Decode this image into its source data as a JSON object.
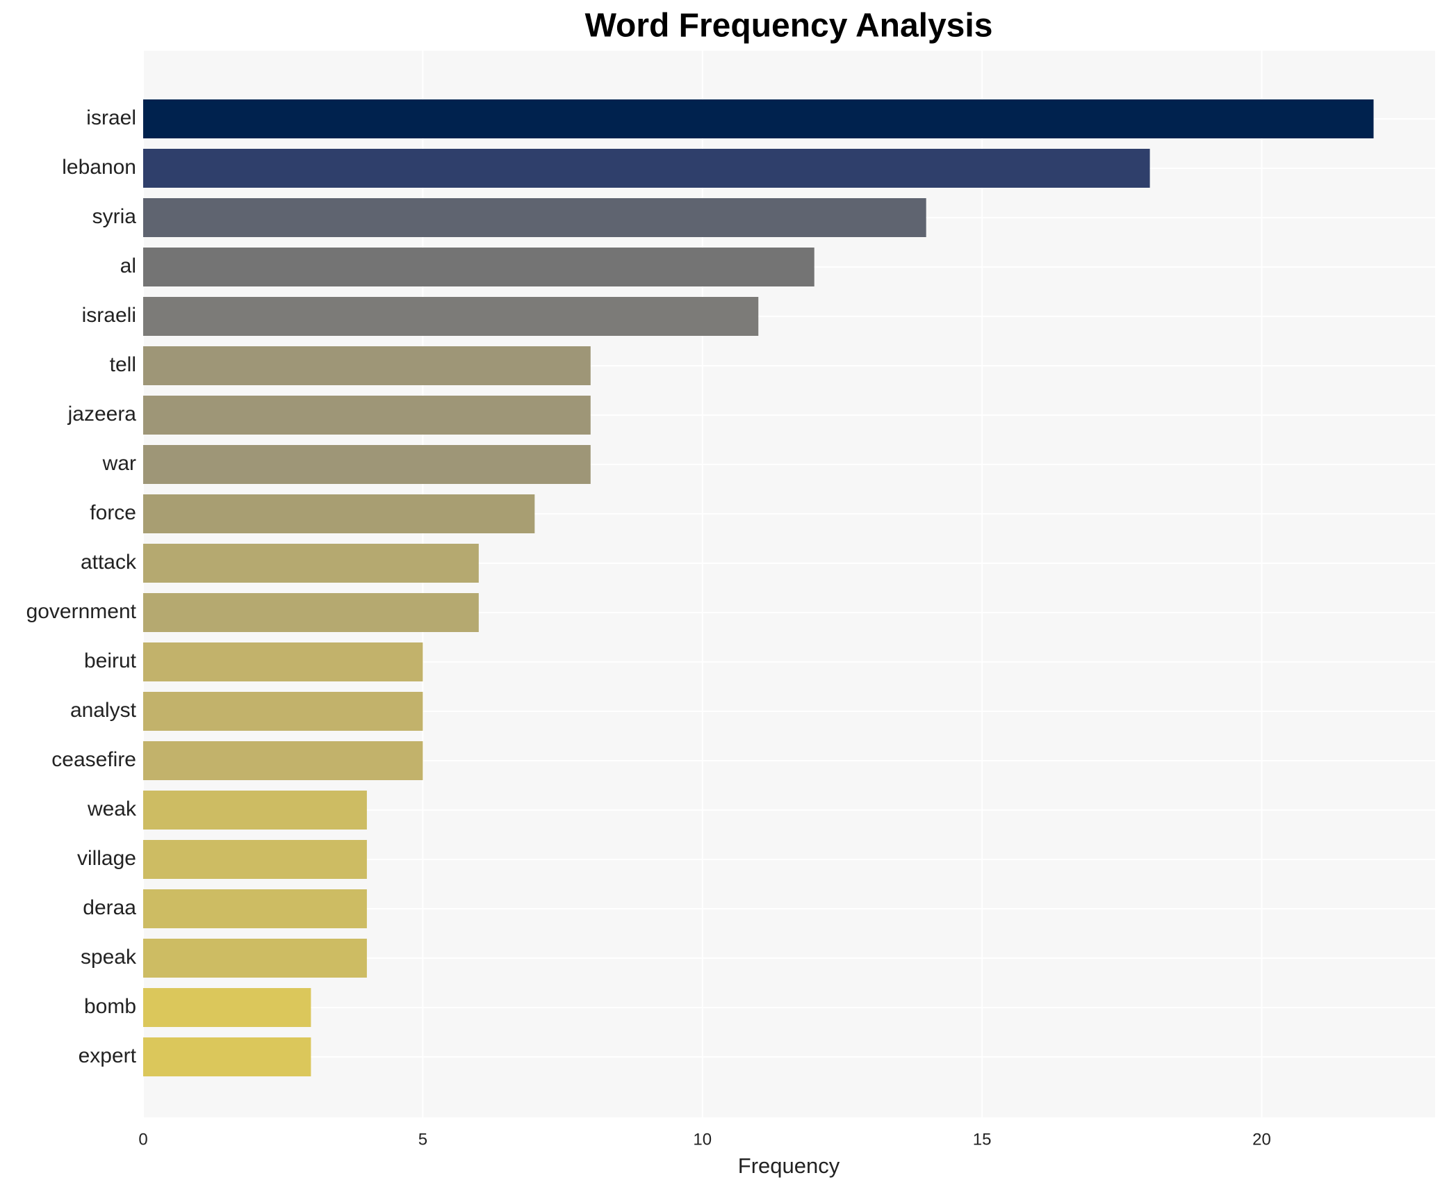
{
  "chart_data": {
    "type": "barh",
    "title": "Word Frequency Analysis",
    "x_label": "Frequency",
    "categories": [
      "israel",
      "lebanon",
      "syria",
      "al",
      "israeli",
      "tell",
      "jazeera",
      "war",
      "force",
      "attack",
      "government",
      "beirut",
      "analyst",
      "ceasefire",
      "weak",
      "village",
      "deraa",
      "speak",
      "bomb",
      "expert"
    ],
    "values": [
      22,
      18,
      14,
      12,
      11,
      8,
      8,
      8,
      7,
      6,
      6,
      5,
      5,
      5,
      4,
      4,
      4,
      4,
      3,
      3
    ],
    "colors": [
      "#00224e",
      "#2f3f6b",
      "#5f6470",
      "#747474",
      "#7c7b78",
      "#9e9677",
      "#9e9677",
      "#9e9677",
      "#a89e72",
      "#b5a970",
      "#b5a970",
      "#c2b26b",
      "#c2b26b",
      "#c2b26b",
      "#cdbc63",
      "#cdbc63",
      "#cdbc63",
      "#cdbc63",
      "#dbc75b",
      "#dbc75b"
    ],
    "xlim": [
      0,
      23.1
    ],
    "xticks": [
      0,
      5,
      10,
      15,
      20
    ],
    "grid": true
  }
}
